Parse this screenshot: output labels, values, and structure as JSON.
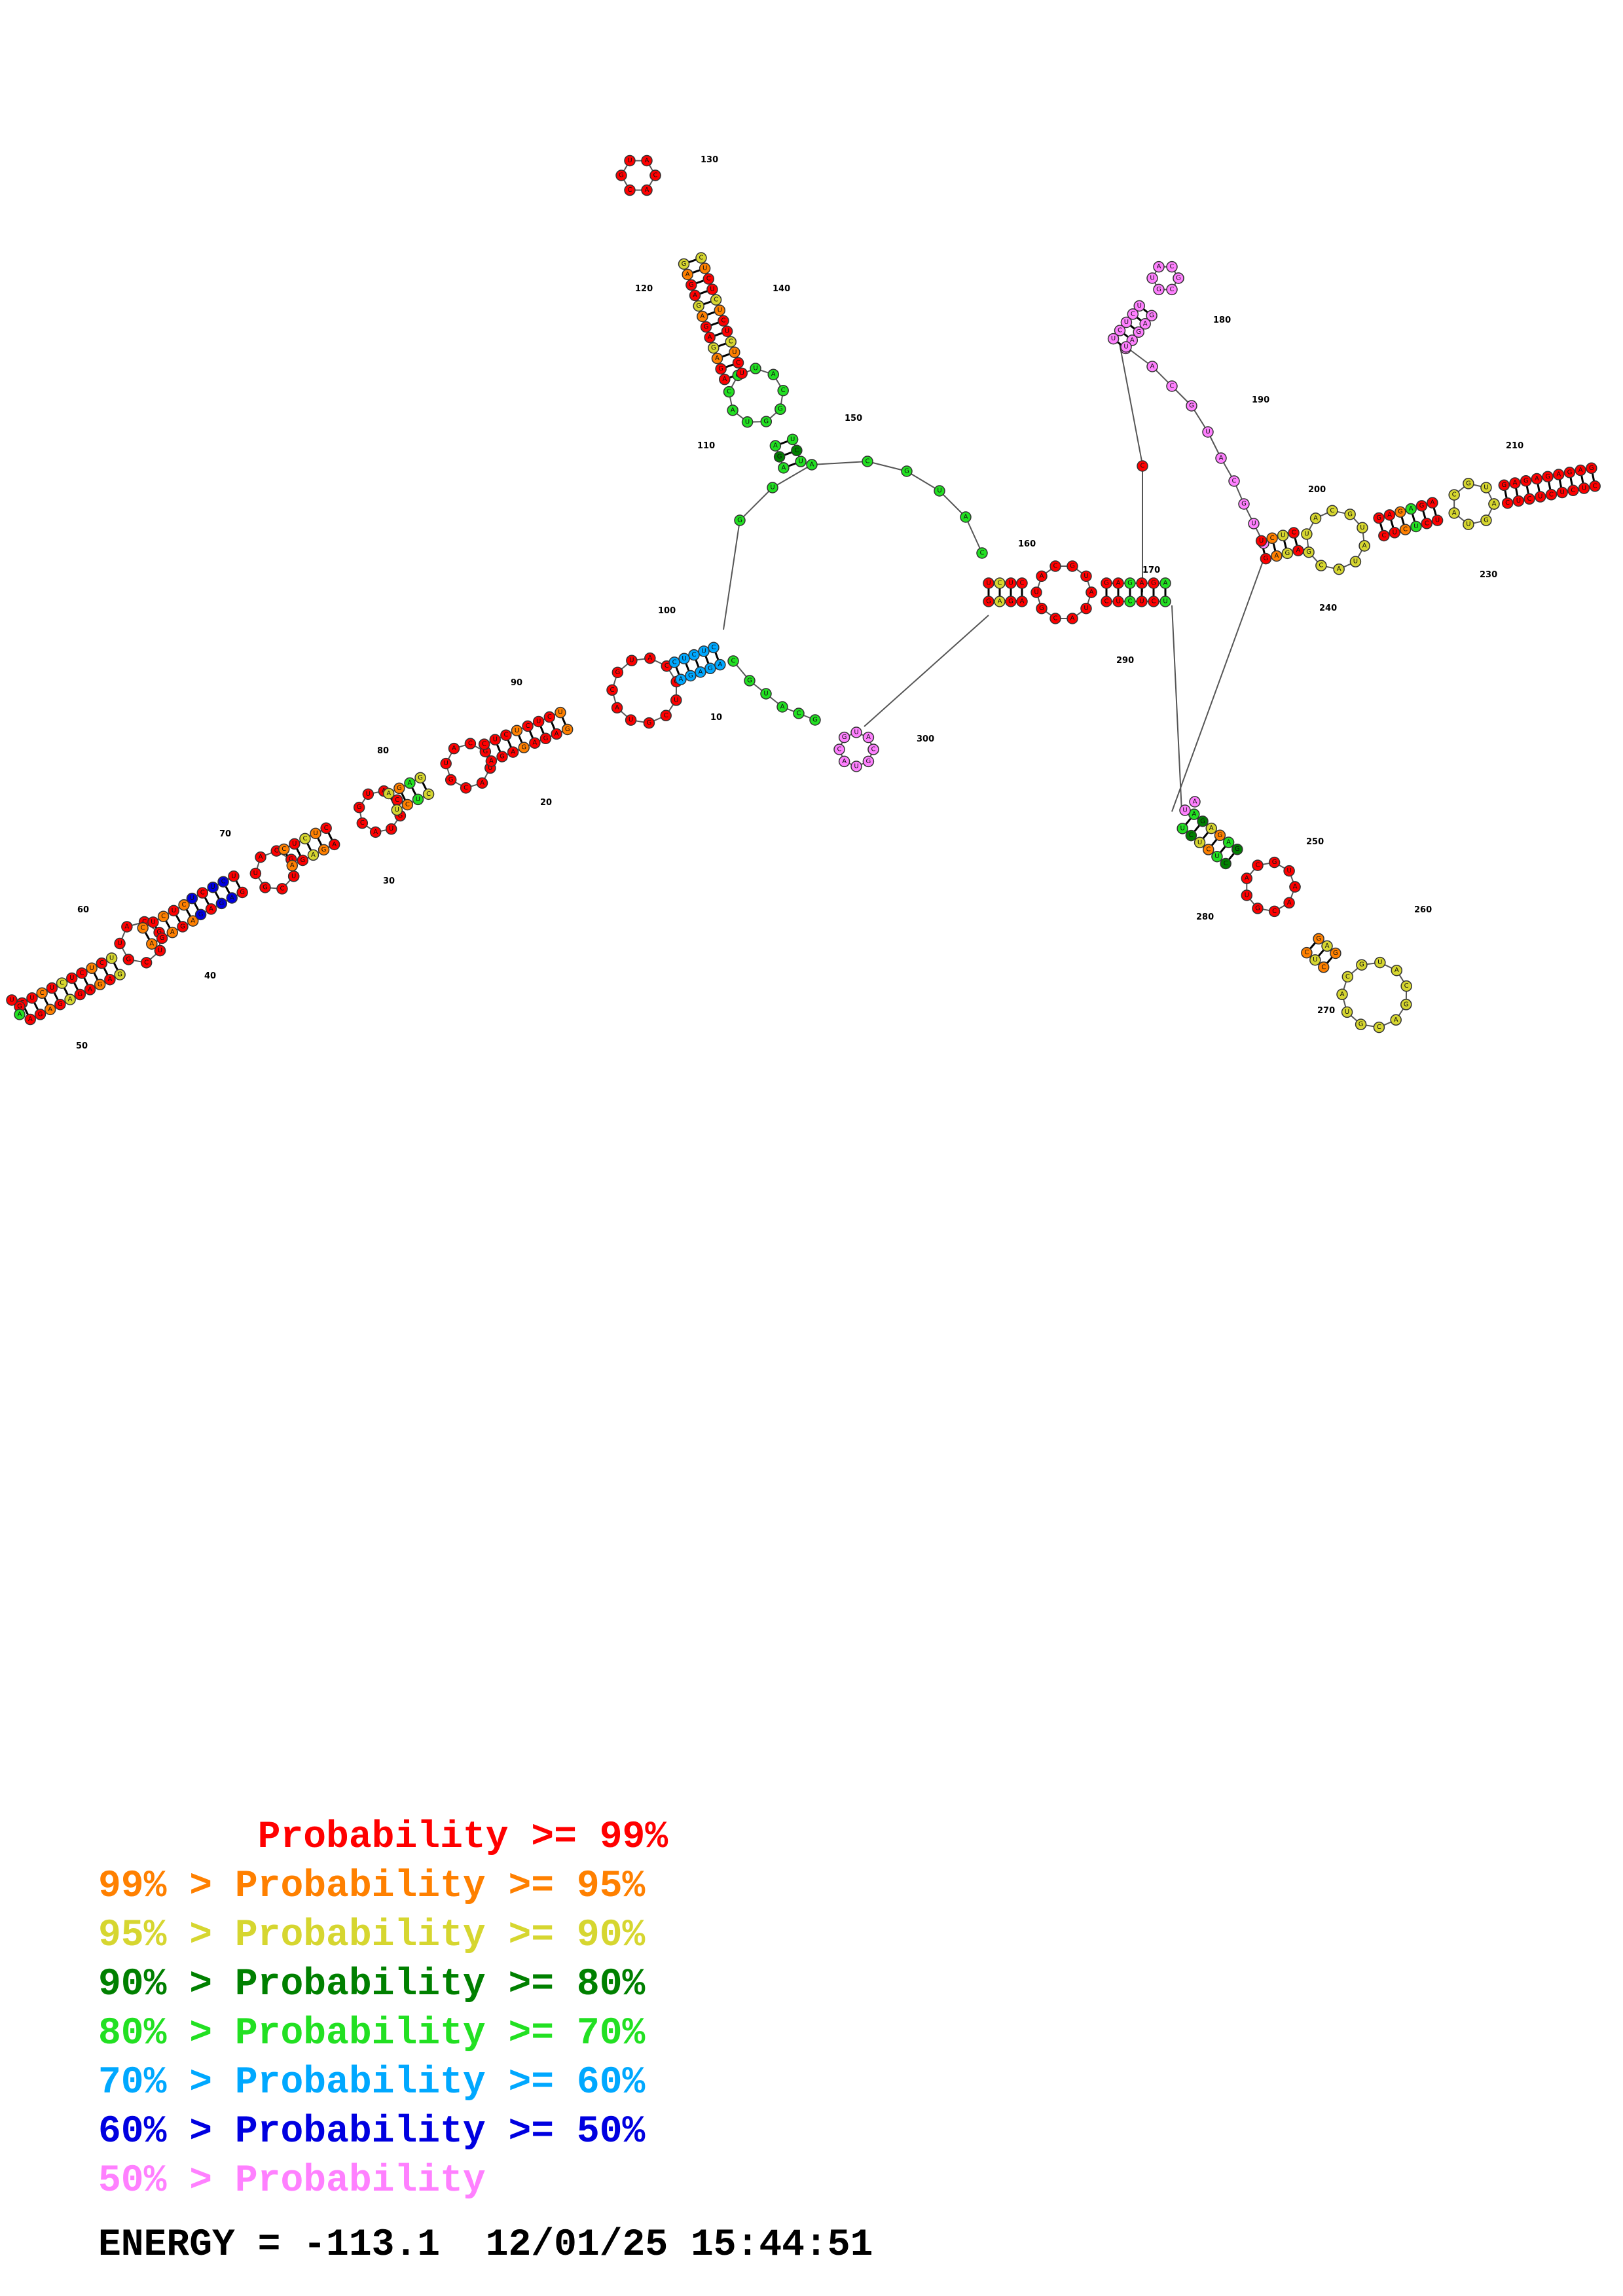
{
  "position_labels": [
    "10",
    "20",
    "30",
    "40",
    "50",
    "60",
    "70",
    "80",
    "90",
    "100",
    "110",
    "120",
    "130",
    "140",
    "150",
    "160",
    "170",
    "180",
    "190",
    "200",
    "210",
    "230",
    "240",
    "250",
    "260",
    "270",
    "280",
    "290",
    "300"
  ],
  "tier_colors": {
    "p99": "#ff0000",
    "p95": "#ff8000",
    "p90": "#d6d630",
    "p80": "#008000",
    "p70": "#22e022",
    "p60": "#00a8ff",
    "p50": "#0000e0",
    "plow": "#ff80ff"
  },
  "legend": [
    {
      "text": "       Probability >= 99%",
      "color": "#ff0000"
    },
    {
      "text": "99% > Probability >= 95%",
      "color": "#ff8000"
    },
    {
      "text": "95% > Probability >= 90%",
      "color": "#d6d630"
    },
    {
      "text": "90% > Probability >= 80%",
      "color": "#008000"
    },
    {
      "text": "80% > Probability >= 70%",
      "color": "#22e022"
    },
    {
      "text": "70% > Probability >= 60%",
      "color": "#00a8ff"
    },
    {
      "text": "60% > Probability >= 50%",
      "color": "#0000e0"
    },
    {
      "text": "50% > Probability",
      "color": "#ff80ff"
    }
  ],
  "energy_line": "ENERGY = -113.1  12/01/25 15:44:51"
}
